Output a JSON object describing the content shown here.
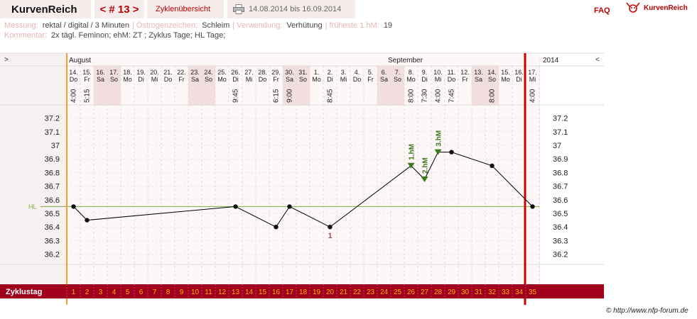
{
  "header": {
    "brand": "KurvenReich",
    "cycle_nav": "< # 13 >",
    "cycle_overview": "Zyklenübersicht",
    "date_range": "14.08.2014 bis 16.09.2014",
    "faq": "FAQ",
    "logo_text": "KurvenReich"
  },
  "info": {
    "messung_label": "Messung:",
    "messung_value": "rektal / digital / 3 Minuten",
    "oestrogen_label": "Östrogenzeichen:",
    "oestrogen_value": "Schleim",
    "verwendung_label": "Verwendung:",
    "verwendung_value": "Verhütung",
    "frueheste_label": "früheste 1.hM:",
    "frueheste_value": "19",
    "kommentar_label": "Kommentar:",
    "kommentar_value": "2x tägl. Feminon; ehM: ZT ; Zyklus  Tage; HL  Tage;"
  },
  "chart_data": {
    "type": "line",
    "title": "",
    "ylabel": "",
    "ylim": [
      36.1,
      37.3
    ],
    "y_ticks": [
      "37.2",
      "37.1",
      "37",
      "36.9",
      "36.8",
      "36.7",
      "36.6",
      "36.5",
      "36.4",
      "36.3",
      "36.2"
    ],
    "nav_left": ">",
    "nav_right": "<",
    "year_label": "2014",
    "months": [
      {
        "label": "August",
        "start_day": 1
      },
      {
        "label": "September",
        "start_day": 19
      }
    ],
    "days": [
      {
        "cycle_day": 1,
        "date": "14.",
        "weekday": "Do",
        "weekend": false,
        "time": "4:00"
      },
      {
        "cycle_day": 2,
        "date": "15.",
        "weekday": "Fr",
        "weekend": false,
        "time": "5:15"
      },
      {
        "cycle_day": 3,
        "date": "16.",
        "weekday": "Sa",
        "weekend": true,
        "time": ""
      },
      {
        "cycle_day": 4,
        "date": "17.",
        "weekday": "So",
        "weekend": true,
        "time": ""
      },
      {
        "cycle_day": 5,
        "date": "18.",
        "weekday": "Mo",
        "weekend": false,
        "time": ""
      },
      {
        "cycle_day": 6,
        "date": "19.",
        "weekday": "Di",
        "weekend": false,
        "time": ""
      },
      {
        "cycle_day": 7,
        "date": "20.",
        "weekday": "Mi",
        "weekend": false,
        "time": ""
      },
      {
        "cycle_day": 8,
        "date": "21.",
        "weekday": "Do",
        "weekend": false,
        "time": ""
      },
      {
        "cycle_day": 9,
        "date": "22.",
        "weekday": "Fr",
        "weekend": false,
        "time": ""
      },
      {
        "cycle_day": 10,
        "date": "23.",
        "weekday": "Sa",
        "weekend": true,
        "time": ""
      },
      {
        "cycle_day": 11,
        "date": "24.",
        "weekday": "So",
        "weekend": true,
        "time": ""
      },
      {
        "cycle_day": 12,
        "date": "25.",
        "weekday": "Mo",
        "weekend": false,
        "time": ""
      },
      {
        "cycle_day": 13,
        "date": "26.",
        "weekday": "Di",
        "weekend": false,
        "time": "9:45"
      },
      {
        "cycle_day": 14,
        "date": "27.",
        "weekday": "Mi",
        "weekend": false,
        "time": ""
      },
      {
        "cycle_day": 15,
        "date": "28.",
        "weekday": "Do",
        "weekend": false,
        "time": ""
      },
      {
        "cycle_day": 16,
        "date": "29.",
        "weekday": "Fr",
        "weekend": false,
        "time": "6:15"
      },
      {
        "cycle_day": 17,
        "date": "30.",
        "weekday": "Sa",
        "weekend": true,
        "time": "9:00"
      },
      {
        "cycle_day": 18,
        "date": "31.",
        "weekday": "So",
        "weekend": true,
        "time": ""
      },
      {
        "cycle_day": 19,
        "date": "1.",
        "weekday": "Mo",
        "weekend": false,
        "time": ""
      },
      {
        "cycle_day": 20,
        "date": "2.",
        "weekday": "Di",
        "weekend": false,
        "time": "8:45"
      },
      {
        "cycle_day": 21,
        "date": "3.",
        "weekday": "Mi",
        "weekend": false,
        "time": ""
      },
      {
        "cycle_day": 22,
        "date": "4.",
        "weekday": "Do",
        "weekend": false,
        "time": ""
      },
      {
        "cycle_day": 23,
        "date": "5.",
        "weekday": "Fr",
        "weekend": false,
        "time": ""
      },
      {
        "cycle_day": 24,
        "date": "6.",
        "weekday": "Sa",
        "weekend": true,
        "time": ""
      },
      {
        "cycle_day": 25,
        "date": "7.",
        "weekday": "So",
        "weekend": true,
        "time": ""
      },
      {
        "cycle_day": 26,
        "date": "8.",
        "weekday": "Mo",
        "weekend": false,
        "time": "8:00"
      },
      {
        "cycle_day": 27,
        "date": "9.",
        "weekday": "Di",
        "weekend": false,
        "time": "7:30"
      },
      {
        "cycle_day": 28,
        "date": "10.",
        "weekday": "Mi",
        "weekend": false,
        "time": "4:00"
      },
      {
        "cycle_day": 29,
        "date": "11.",
        "weekday": "Do",
        "weekend": false,
        "time": "7:45"
      },
      {
        "cycle_day": 30,
        "date": "12.",
        "weekday": "Fr",
        "weekend": false,
        "time": ""
      },
      {
        "cycle_day": 31,
        "date": "13.",
        "weekday": "Sa",
        "weekend": true,
        "time": ""
      },
      {
        "cycle_day": 32,
        "date": "14.",
        "weekday": "So",
        "weekend": true,
        "time": "8:00"
      },
      {
        "cycle_day": 33,
        "date": "15.",
        "weekday": "Mo",
        "weekend": false,
        "time": ""
      },
      {
        "cycle_day": 34,
        "date": "16.",
        "weekday": "Di",
        "weekend": false,
        "time": ""
      },
      {
        "cycle_day": 35,
        "date": "17.",
        "weekday": "Mi",
        "weekend": false,
        "time": "4:00"
      }
    ],
    "series": [
      {
        "points": [
          {
            "day": 1,
            "temp": 36.55
          },
          {
            "day": 2,
            "temp": 36.45
          },
          {
            "day": 13,
            "temp": 36.55
          },
          {
            "day": 16,
            "temp": 36.4
          },
          {
            "day": 17,
            "temp": 36.55
          },
          {
            "day": 20,
            "temp": 36.4
          },
          {
            "day": 26,
            "temp": 36.85
          },
          {
            "day": 27,
            "temp": 36.75
          },
          {
            "day": 28,
            "temp": 36.95
          },
          {
            "day": 29,
            "temp": 36.95
          },
          {
            "day": 32,
            "temp": 36.85
          },
          {
            "day": 35,
            "temp": 36.55
          }
        ]
      }
    ],
    "hl": {
      "label": "HL",
      "temp": 36.55
    },
    "annotations": [
      {
        "day": 20,
        "temp": 36.4,
        "text": "1",
        "color": "#a05060"
      },
      {
        "day": 26,
        "temp": 36.85,
        "text": "1.hM",
        "color": "#3a7a1a"
      },
      {
        "day": 27,
        "temp": 36.75,
        "text": "2.hM",
        "color": "#3a7a1a"
      },
      {
        "day": 28,
        "temp": 36.95,
        "text": "3.hM",
        "color": "#3a7a1a"
      }
    ],
    "current_day": 35,
    "cycle_start_day": 1,
    "zyklustag_label": "Zyklustag",
    "grid": true,
    "colors": {
      "line": "#000000",
      "hl_line": "#7aaa4a",
      "current_day_line": "#cc0000",
      "cycle_start_line": "#f0a030",
      "weekend_bg": "#f2dede",
      "zyklustag_bar": "#a0001e",
      "zyklustag_numbers": "#ffb000"
    }
  },
  "footer": {
    "copyright": "© http://www.nfp-forum.de"
  }
}
